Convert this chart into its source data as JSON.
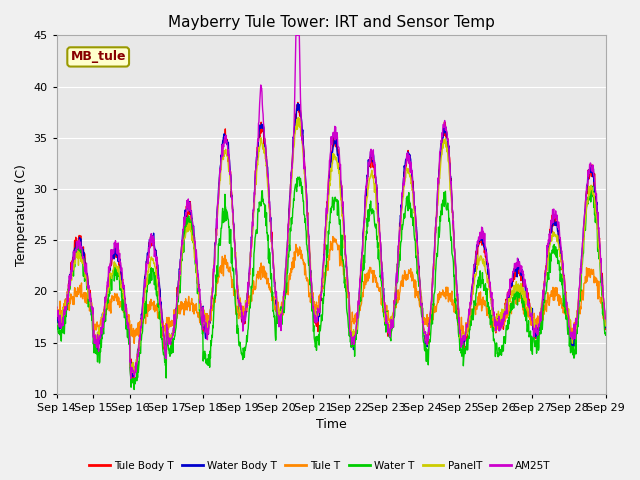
{
  "title": "Mayberry Tule Tower: IRT and Sensor Temp",
  "xlabel": "Time",
  "ylabel": "Temperature (C)",
  "ylim": [
    10,
    45
  ],
  "xlim": [
    0,
    15
  ],
  "x_tick_labels": [
    "Sep 14",
    "Sep 15",
    "Sep 16",
    "Sep 17",
    "Sep 18",
    "Sep 19",
    "Sep 20",
    "Sep 21",
    "Sep 22",
    "Sep 23",
    "Sep 24",
    "Sep 25",
    "Sep 26",
    "Sep 27",
    "Sep 28",
    "Sep 29"
  ],
  "legend_labels": [
    "Tule Body T",
    "Water Body T",
    "Tule T",
    "Water T",
    "PanelT",
    "AM25T"
  ],
  "legend_colors": [
    "#ff0000",
    "#0000cc",
    "#ff8800",
    "#00cc00",
    "#cccc00",
    "#cc00cc"
  ],
  "annotation_text": "MB_tule",
  "annotation_color": "#880000",
  "annotation_bg": "#ffffcc",
  "title_fontsize": 11,
  "label_fontsize": 9,
  "tick_fontsize": 8,
  "fig_bg": "#f0f0f0",
  "plot_bg": "#e8e8e8",
  "grid_color": "#ffffff"
}
